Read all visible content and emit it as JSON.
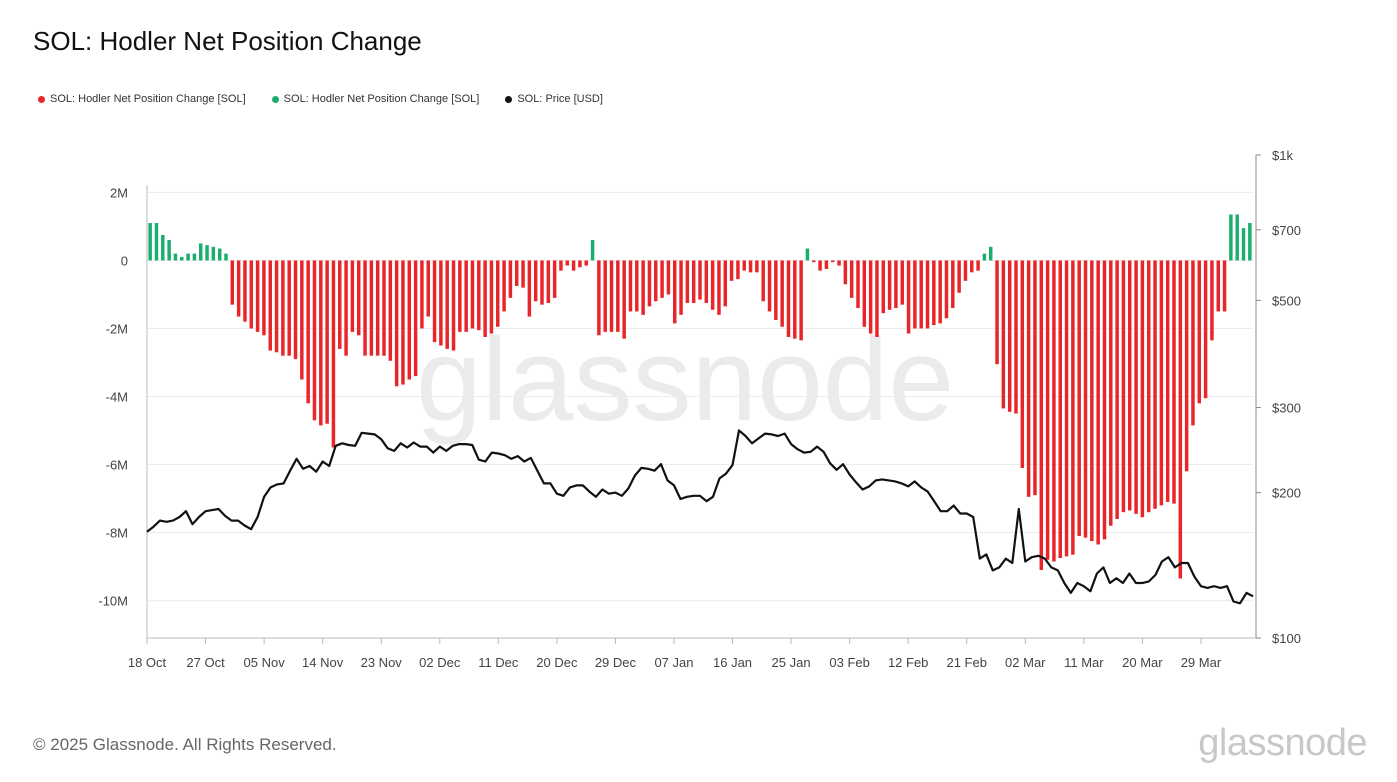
{
  "title": "SOL: Hodler Net Position Change",
  "legend": [
    {
      "label": "SOL: Hodler Net Position Change [SOL]",
      "color": "#e8262a"
    },
    {
      "label": "SOL: Hodler Net Position Change [SOL]",
      "color": "#1aad6e"
    },
    {
      "label": "SOL: Price [USD]",
      "color": "#111111"
    }
  ],
  "watermark": "glassnode",
  "footer": "© 2025 Glassnode. All Rights Reserved.",
  "brand": "glassnode",
  "chart_data": {
    "type": "bar+line",
    "x_tick_labels": [
      "18 Oct",
      "27 Oct",
      "05 Nov",
      "14 Nov",
      "23 Nov",
      "02 Dec",
      "11 Dec",
      "20 Dec",
      "29 Dec",
      "07 Jan",
      "16 Jan",
      "25 Jan",
      "03 Feb",
      "12 Feb",
      "21 Feb",
      "02 Mar",
      "11 Mar",
      "20 Mar",
      "29 Mar"
    ],
    "left_axis": {
      "ticks": [
        "2M",
        "0",
        "-2M",
        "-4M",
        "-6M",
        "-8M",
        "-10M"
      ],
      "tick_values": [
        2,
        0,
        -2,
        -4,
        -6,
        -8,
        -10
      ],
      "ylim_millions": [
        -11.1,
        3.1
      ],
      "unit": "M SOL"
    },
    "right_axis": {
      "ticks": [
        "$1k",
        "$700",
        "$500",
        "$300",
        "$200",
        "$100"
      ],
      "tick_values": [
        1000,
        700,
        500,
        300,
        200,
        100
      ],
      "scale": "log",
      "ylim": [
        100,
        1000
      ]
    },
    "series": [
      {
        "name": "SOL: Hodler Net Position Change [SOL]",
        "type": "bar",
        "unit": "M SOL",
        "colors": {
          "positive": "#1aad6e",
          "negative": "#e8262a"
        },
        "values": [
          1.1,
          1.1,
          0.75,
          0.6,
          0.2,
          0.1,
          0.2,
          0.2,
          0.5,
          0.45,
          0.4,
          0.35,
          0.2,
          -1.3,
          -1.65,
          -1.8,
          -2.0,
          -2.1,
          -2.2,
          -2.65,
          -2.7,
          -2.8,
          -2.8,
          -2.9,
          -3.5,
          -4.2,
          -4.7,
          -4.85,
          -4.8,
          -5.5,
          -2.6,
          -2.8,
          -2.1,
          -2.2,
          -2.8,
          -2.8,
          -2.8,
          -2.8,
          -2.95,
          -3.7,
          -3.65,
          -3.5,
          -3.4,
          -2.0,
          -1.65,
          -2.4,
          -2.5,
          -2.6,
          -2.65,
          -2.1,
          -2.1,
          -2.0,
          -2.05,
          -2.25,
          -2.15,
          -1.95,
          -1.5,
          -1.1,
          -0.75,
          -0.8,
          -1.65,
          -1.2,
          -1.3,
          -1.25,
          -1.1,
          -0.3,
          -0.15,
          -0.3,
          -0.2,
          -0.15,
          0.6,
          -2.2,
          -2.1,
          -2.1,
          -2.1,
          -2.3,
          -1.5,
          -1.5,
          -1.6,
          -1.35,
          -1.2,
          -1.1,
          -1.0,
          -1.85,
          -1.6,
          -1.25,
          -1.25,
          -1.15,
          -1.25,
          -1.45,
          -1.6,
          -1.35,
          -0.6,
          -0.55,
          -0.3,
          -0.35,
          -0.35,
          -1.2,
          -1.5,
          -1.75,
          -1.95,
          -2.25,
          -2.3,
          -2.35,
          0.35,
          -0.05,
          -0.3,
          -0.25,
          -0.05,
          -0.15,
          -0.7,
          -1.1,
          -1.4,
          -1.95,
          -2.15,
          -2.25,
          -1.55,
          -1.45,
          -1.4,
          -1.3,
          -2.15,
          -2.0,
          -2.0,
          -2.0,
          -1.9,
          -1.85,
          -1.7,
          -1.4,
          -0.95,
          -0.6,
          -0.35,
          -0.3,
          0.2,
          0.4,
          -3.05,
          -4.35,
          -4.45,
          -4.5,
          -6.1,
          -6.95,
          -6.9,
          -9.1,
          -8.8,
          -8.85,
          -8.75,
          -8.7,
          -8.65,
          -8.1,
          -8.15,
          -8.25,
          -8.35,
          -8.2,
          -7.8,
          -7.6,
          -7.4,
          -7.35,
          -7.45,
          -7.55,
          -7.4,
          -7.3,
          -7.2,
          -7.1,
          -7.15,
          -9.35,
          -6.2,
          -4.85,
          -4.2,
          -4.05,
          -2.35,
          -1.5,
          -1.5,
          1.35,
          1.35,
          0.95,
          1.1
        ]
      },
      {
        "name": "SOL: Price [USD]",
        "type": "line",
        "color": "#111111",
        "values": [
          166,
          170,
          175,
          174,
          175,
          178,
          183,
          172,
          178,
          183,
          184,
          185,
          179,
          175,
          175,
          171,
          168,
          178,
          196,
          205,
          208,
          209,
          222,
          235,
          224,
          227,
          221,
          232,
          227,
          250,
          253,
          251,
          250,
          266,
          265,
          264,
          258,
          247,
          244,
          253,
          248,
          254,
          249,
          249,
          242,
          249,
          244,
          250,
          252,
          252,
          251,
          234,
          232,
          242,
          241,
          239,
          235,
          238,
          232,
          236,
          222,
          209,
          209,
          199,
          197,
          205,
          207,
          207,
          201,
          196,
          203,
          199,
          200,
          197,
          204,
          217,
          225,
          224,
          222,
          229,
          212,
          207,
          194,
          196,
          197,
          197,
          192,
          196,
          214,
          219,
          228,
          269,
          262,
          253,
          259,
          265,
          264,
          262,
          265,
          252,
          246,
          242,
          243,
          249,
          243,
          230,
          223,
          229,
          218,
          210,
          203,
          206,
          212,
          213,
          212,
          211,
          209,
          206,
          211,
          205,
          201,
          192,
          183,
          183,
          188,
          181,
          181,
          178,
          146,
          149,
          138,
          140,
          146,
          143,
          185,
          144,
          147,
          148,
          146,
          140,
          138,
          130,
          124,
          130,
          128,
          125,
          136,
          140,
          130,
          133,
          130,
          136,
          130,
          130,
          131,
          135,
          144,
          147,
          140,
          143,
          143,
          134,
          128,
          127,
          128,
          127,
          128,
          119,
          118,
          124,
          122
        ]
      }
    ]
  }
}
